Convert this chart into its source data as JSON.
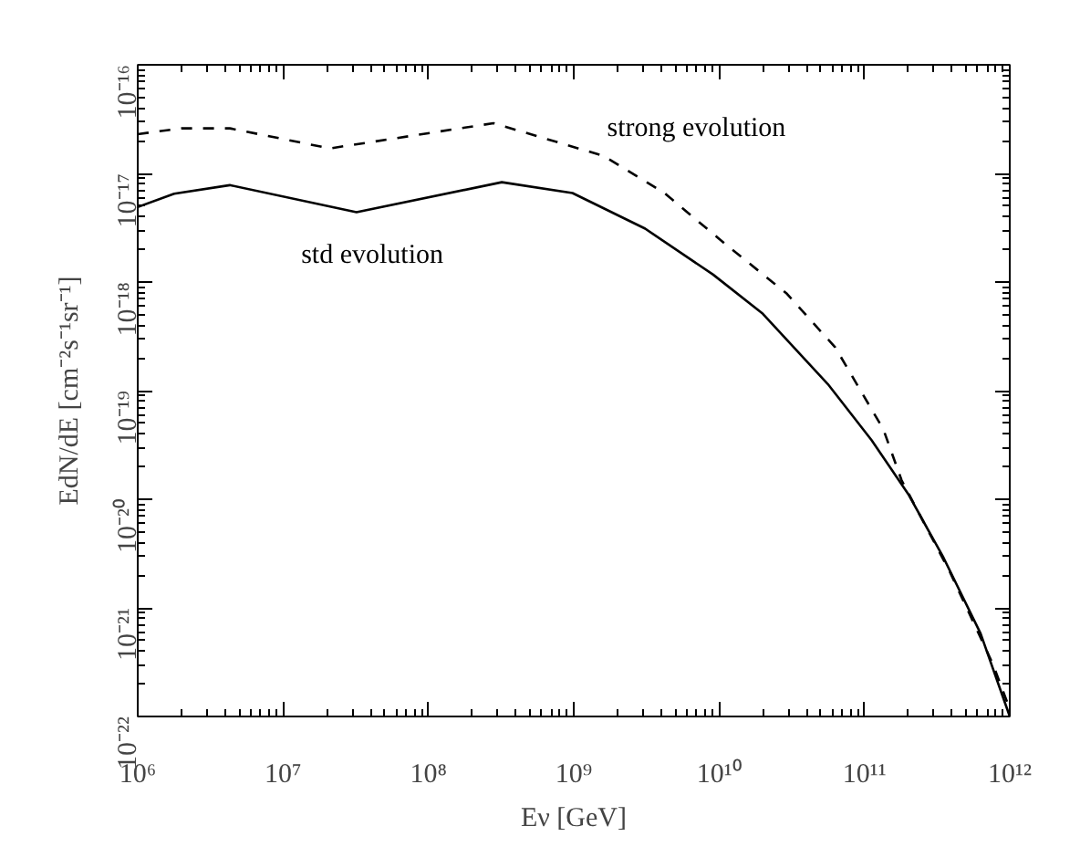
{
  "chart_data": {
    "type": "line",
    "xlabel": "Eν [GeV]",
    "ylabel": "EdN/dE [cm⁻²s⁻¹sr⁻¹]",
    "log": "xy",
    "grid": false,
    "xlim": [
      1000000.0,
      1000000000000.0
    ],
    "ylim": [
      1e-22,
      1e-16
    ],
    "xticks": [
      {
        "value": 1000000.0,
        "label": "10⁶"
      },
      {
        "value": 10000000.0,
        "label": "10⁷"
      },
      {
        "value": 100000000.0,
        "label": "10⁸"
      },
      {
        "value": 1000000000.0,
        "label": "10⁹"
      },
      {
        "value": 10000000000.0,
        "label": "10¹⁰"
      },
      {
        "value": 100000000000.0,
        "label": "10¹¹"
      },
      {
        "value": 1000000000000.0,
        "label": "10¹²"
      }
    ],
    "yticks": [
      {
        "value": 1e-22,
        "label": "10⁻²²"
      },
      {
        "value": 1e-21,
        "label": "10⁻²¹"
      },
      {
        "value": 1e-20,
        "label": "10⁻²⁰"
      },
      {
        "value": 1e-19,
        "label": "10⁻¹⁹"
      },
      {
        "value": 1e-18,
        "label": "10⁻¹⁸"
      },
      {
        "value": 1e-17,
        "label": "10⁻¹⁷"
      },
      {
        "value": 1e-16,
        "label": "10⁻¹⁶"
      }
    ],
    "series": [
      {
        "name": "std evolution",
        "color": "#000000",
        "line_style": "solid",
        "x": [
          1000000.0,
          1780000.0,
          4300000.0,
          32000000.0,
          320000000.0,
          980000000.0,
          3100000000.0,
          9100000000.0,
          20000000000.0,
          56000000000.0,
          112000000000.0,
          200000000000.0,
          350000000000.0,
          630000000000.0,
          1000000000000.0
        ],
        "values": [
          4.9e-18,
          6.5e-18,
          7.8e-18,
          4.4e-18,
          8.3e-18,
          6.6e-18,
          3.1e-18,
          1.17e-18,
          5.1e-19,
          1.15e-19,
          3.5e-20,
          1.12e-20,
          2.9e-21,
          5.8e-22,
          1e-22
        ]
      },
      {
        "name": "strong evolution",
        "color": "#000000",
        "line_style": "dashed",
        "x": [
          1000000.0,
          2000000.0,
          4300000.0,
          21000000.0,
          280000000.0,
          1600000000.0,
          4200000000.0,
          11200000000.0,
          29000000000.0,
          63000000000.0,
          135000000000.0,
          180000000000.0,
          390000000000.0,
          760000000000.0,
          1000000000000.0
        ],
        "values": [
          2.3e-17,
          2.6e-17,
          2.6e-17,
          1.7e-17,
          2.9e-17,
          1.45e-17,
          6.6e-18,
          2.2e-18,
          7.9e-19,
          2.5e-19,
          4.4e-20,
          1.5e-20,
          2.1e-21,
          3.1e-22,
          1.17e-22
        ]
      }
    ]
  }
}
